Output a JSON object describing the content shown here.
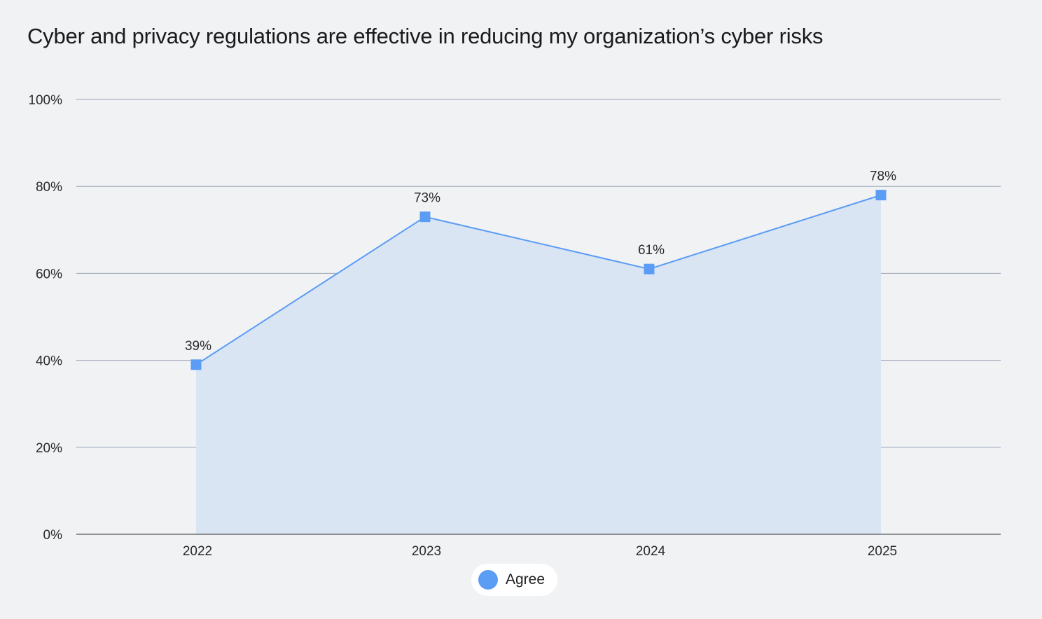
{
  "chart_data": {
    "type": "area",
    "title": "Cyber and privacy regulations are effective in reducing my organization’s cyber risks",
    "categories": [
      "2022",
      "2023",
      "2024",
      "2025"
    ],
    "series": [
      {
        "name": "Agree",
        "values": [
          39,
          73,
          61,
          78
        ],
        "data_labels": [
          "39%",
          "73%",
          "61%",
          "78%"
        ]
      }
    ],
    "ylim": [
      0,
      100
    ],
    "y_ticks": [
      0,
      20,
      40,
      60,
      80,
      100
    ],
    "y_tick_labels": [
      "0%",
      "20%",
      "40%",
      "60%",
      "80%",
      "100%"
    ],
    "grid": true,
    "legend_position": "bottom-center",
    "colors": {
      "line": "#5b9cf5",
      "marker": "#5b9cf5",
      "fill": "#dae5f3",
      "gridline": "#9aa3b5",
      "axis": "#555555",
      "background": "#f0f2f4"
    }
  }
}
